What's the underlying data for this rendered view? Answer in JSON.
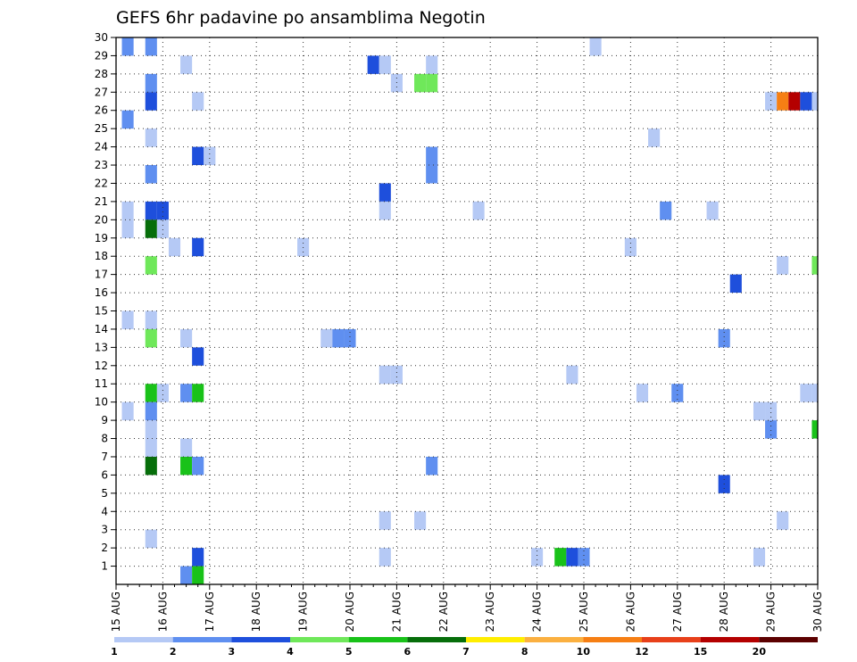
{
  "chart_data": {
    "type": "heatmap",
    "title": "GEFS 6hr padavine po ansamblima Negotin",
    "xlabel": "",
    "ylabel": "",
    "x_tick_labels": [
      "15 AUG",
      "16 AUG",
      "17 AUG",
      "18 AUG",
      "19 AUG",
      "20 AUG",
      "21 AUG",
      "22 AUG",
      "23 AUG",
      "24 AUG",
      "25 AUG",
      "26 AUG",
      "27 AUG",
      "28 AUG",
      "29 AUG",
      "30 AUG"
    ],
    "y_tick_labels": [
      "1",
      "2",
      "3",
      "4",
      "5",
      "6",
      "7",
      "8",
      "9",
      "10",
      "11",
      "12",
      "13",
      "14",
      "15",
      "16",
      "17",
      "18",
      "19",
      "20",
      "21",
      "22",
      "23",
      "24",
      "25",
      "26",
      "27",
      "28",
      "29",
      "30"
    ],
    "x_range_days": [
      0,
      15
    ],
    "y_range_members": [
      0,
      30
    ],
    "time_step_hours": 6,
    "grid": "dotted",
    "colorbar": {
      "position": "bottom",
      "labels": [
        "1",
        "2",
        "3",
        "4",
        "5",
        "6",
        "7",
        "8",
        "10",
        "12",
        "15",
        "20"
      ],
      "colors": [
        "#b5c9f5",
        "#5f8ff0",
        "#1e4fdc",
        "#6fe85a",
        "#19c219",
        "#066e0a",
        "#ffee00",
        "#fbb040",
        "#f67f14",
        "#e8401a",
        "#b40000",
        "#5c0000"
      ],
      "key_positions": [
        1,
        2,
        3,
        4,
        5,
        6,
        7,
        8,
        10,
        12,
        15,
        20
      ]
    },
    "cells": [
      {
        "t": 1,
        "m": 30,
        "c": 2
      },
      {
        "t": 3,
        "m": 30,
        "c": 2
      },
      {
        "t": 41,
        "m": 30,
        "c": 1
      },
      {
        "t": 6,
        "m": 29,
        "c": 1
      },
      {
        "t": 22,
        "m": 29,
        "c": 3
      },
      {
        "t": 23,
        "m": 29,
        "c": 1
      },
      {
        "t": 27,
        "m": 29,
        "c": 1
      },
      {
        "t": 3,
        "m": 28,
        "c": 2
      },
      {
        "t": 24,
        "m": 28,
        "c": 1
      },
      {
        "t": 26,
        "m": 28,
        "c": 4
      },
      {
        "t": 27,
        "m": 28,
        "c": 4
      },
      {
        "t": 3,
        "m": 27,
        "c": 3
      },
      {
        "t": 7,
        "m": 27,
        "c": 1
      },
      {
        "t": 56,
        "m": 27,
        "c": 1
      },
      {
        "t": 57,
        "m": 27,
        "c": 9
      },
      {
        "t": 58,
        "m": 27,
        "c": 11
      },
      {
        "t": 59,
        "m": 27,
        "c": 3
      },
      {
        "t": 60,
        "m": 27,
        "c": 1
      },
      {
        "t": 1,
        "m": 26,
        "c": 2
      },
      {
        "t": 3,
        "m": 25,
        "c": 1
      },
      {
        "t": 46,
        "m": 25,
        "c": 1
      },
      {
        "t": 7,
        "m": 24,
        "c": 3
      },
      {
        "t": 8,
        "m": 24,
        "c": 1
      },
      {
        "t": 27,
        "m": 24,
        "c": 2
      },
      {
        "t": 3,
        "m": 23,
        "c": 2
      },
      {
        "t": 27,
        "m": 23,
        "c": 2
      },
      {
        "t": 23,
        "m": 22,
        "c": 3
      },
      {
        "t": 1,
        "m": 21,
        "c": 1
      },
      {
        "t": 3,
        "m": 21,
        "c": 3
      },
      {
        "t": 4,
        "m": 21,
        "c": 3
      },
      {
        "t": 23,
        "m": 21,
        "c": 1
      },
      {
        "t": 31,
        "m": 21,
        "c": 1
      },
      {
        "t": 47,
        "m": 21,
        "c": 2
      },
      {
        "t": 51,
        "m": 21,
        "c": 1
      },
      {
        "t": 1,
        "m": 20,
        "c": 1
      },
      {
        "t": 3,
        "m": 20,
        "c": 6
      },
      {
        "t": 4,
        "m": 20,
        "c": 1
      },
      {
        "t": 5,
        "m": 19,
        "c": 1
      },
      {
        "t": 7,
        "m": 19,
        "c": 3
      },
      {
        "t": 16,
        "m": 19,
        "c": 1
      },
      {
        "t": 44,
        "m": 19,
        "c": 1
      },
      {
        "t": 3,
        "m": 18,
        "c": 4
      },
      {
        "t": 57,
        "m": 18,
        "c": 1
      },
      {
        "t": 60,
        "m": 18,
        "c": 4
      },
      {
        "t": 53,
        "m": 17,
        "c": 3
      },
      {
        "t": 1,
        "m": 15,
        "c": 1
      },
      {
        "t": 3,
        "m": 15,
        "c": 1
      },
      {
        "t": 3,
        "m": 14,
        "c": 4
      },
      {
        "t": 6,
        "m": 14,
        "c": 1
      },
      {
        "t": 18,
        "m": 14,
        "c": 1
      },
      {
        "t": 19,
        "m": 14,
        "c": 2
      },
      {
        "t": 20,
        "m": 14,
        "c": 2
      },
      {
        "t": 52,
        "m": 14,
        "c": 2
      },
      {
        "t": 7,
        "m": 13,
        "c": 3
      },
      {
        "t": 23,
        "m": 12,
        "c": 1
      },
      {
        "t": 24,
        "m": 12,
        "c": 1
      },
      {
        "t": 39,
        "m": 12,
        "c": 1
      },
      {
        "t": 3,
        "m": 11,
        "c": 5
      },
      {
        "t": 4,
        "m": 11,
        "c": 1
      },
      {
        "t": 6,
        "m": 11,
        "c": 2
      },
      {
        "t": 7,
        "m": 11,
        "c": 5
      },
      {
        "t": 45,
        "m": 11,
        "c": 1
      },
      {
        "t": 48,
        "m": 11,
        "c": 2
      },
      {
        "t": 59,
        "m": 11,
        "c": 1
      },
      {
        "t": 60,
        "m": 11,
        "c": 1
      },
      {
        "t": 1,
        "m": 10,
        "c": 1
      },
      {
        "t": 3,
        "m": 10,
        "c": 2
      },
      {
        "t": 55,
        "m": 10,
        "c": 1
      },
      {
        "t": 56,
        "m": 10,
        "c": 1
      },
      {
        "t": 3,
        "m": 9,
        "c": 1
      },
      {
        "t": 56,
        "m": 9,
        "c": 2
      },
      {
        "t": 60,
        "m": 9,
        "c": 5
      },
      {
        "t": 3,
        "m": 8,
        "c": 1
      },
      {
        "t": 6,
        "m": 8,
        "c": 1
      },
      {
        "t": 3,
        "m": 7,
        "c": 6
      },
      {
        "t": 6,
        "m": 7,
        "c": 5
      },
      {
        "t": 7,
        "m": 7,
        "c": 2
      },
      {
        "t": 27,
        "m": 7,
        "c": 2
      },
      {
        "t": 52,
        "m": 6,
        "c": 3
      },
      {
        "t": 23,
        "m": 4,
        "c": 1
      },
      {
        "t": 26,
        "m": 4,
        "c": 1
      },
      {
        "t": 57,
        "m": 4,
        "c": 1
      },
      {
        "t": 3,
        "m": 3,
        "c": 1
      },
      {
        "t": 7,
        "m": 2,
        "c": 3
      },
      {
        "t": 23,
        "m": 2,
        "c": 1
      },
      {
        "t": 36,
        "m": 2,
        "c": 1
      },
      {
        "t": 38,
        "m": 2,
        "c": 5
      },
      {
        "t": 39,
        "m": 2,
        "c": 3
      },
      {
        "t": 40,
        "m": 2,
        "c": 2
      },
      {
        "t": 55,
        "m": 2,
        "c": 1
      },
      {
        "t": 6,
        "m": 1,
        "c": 2
      },
      {
        "t": 7,
        "m": 1,
        "c": 5
      }
    ]
  }
}
